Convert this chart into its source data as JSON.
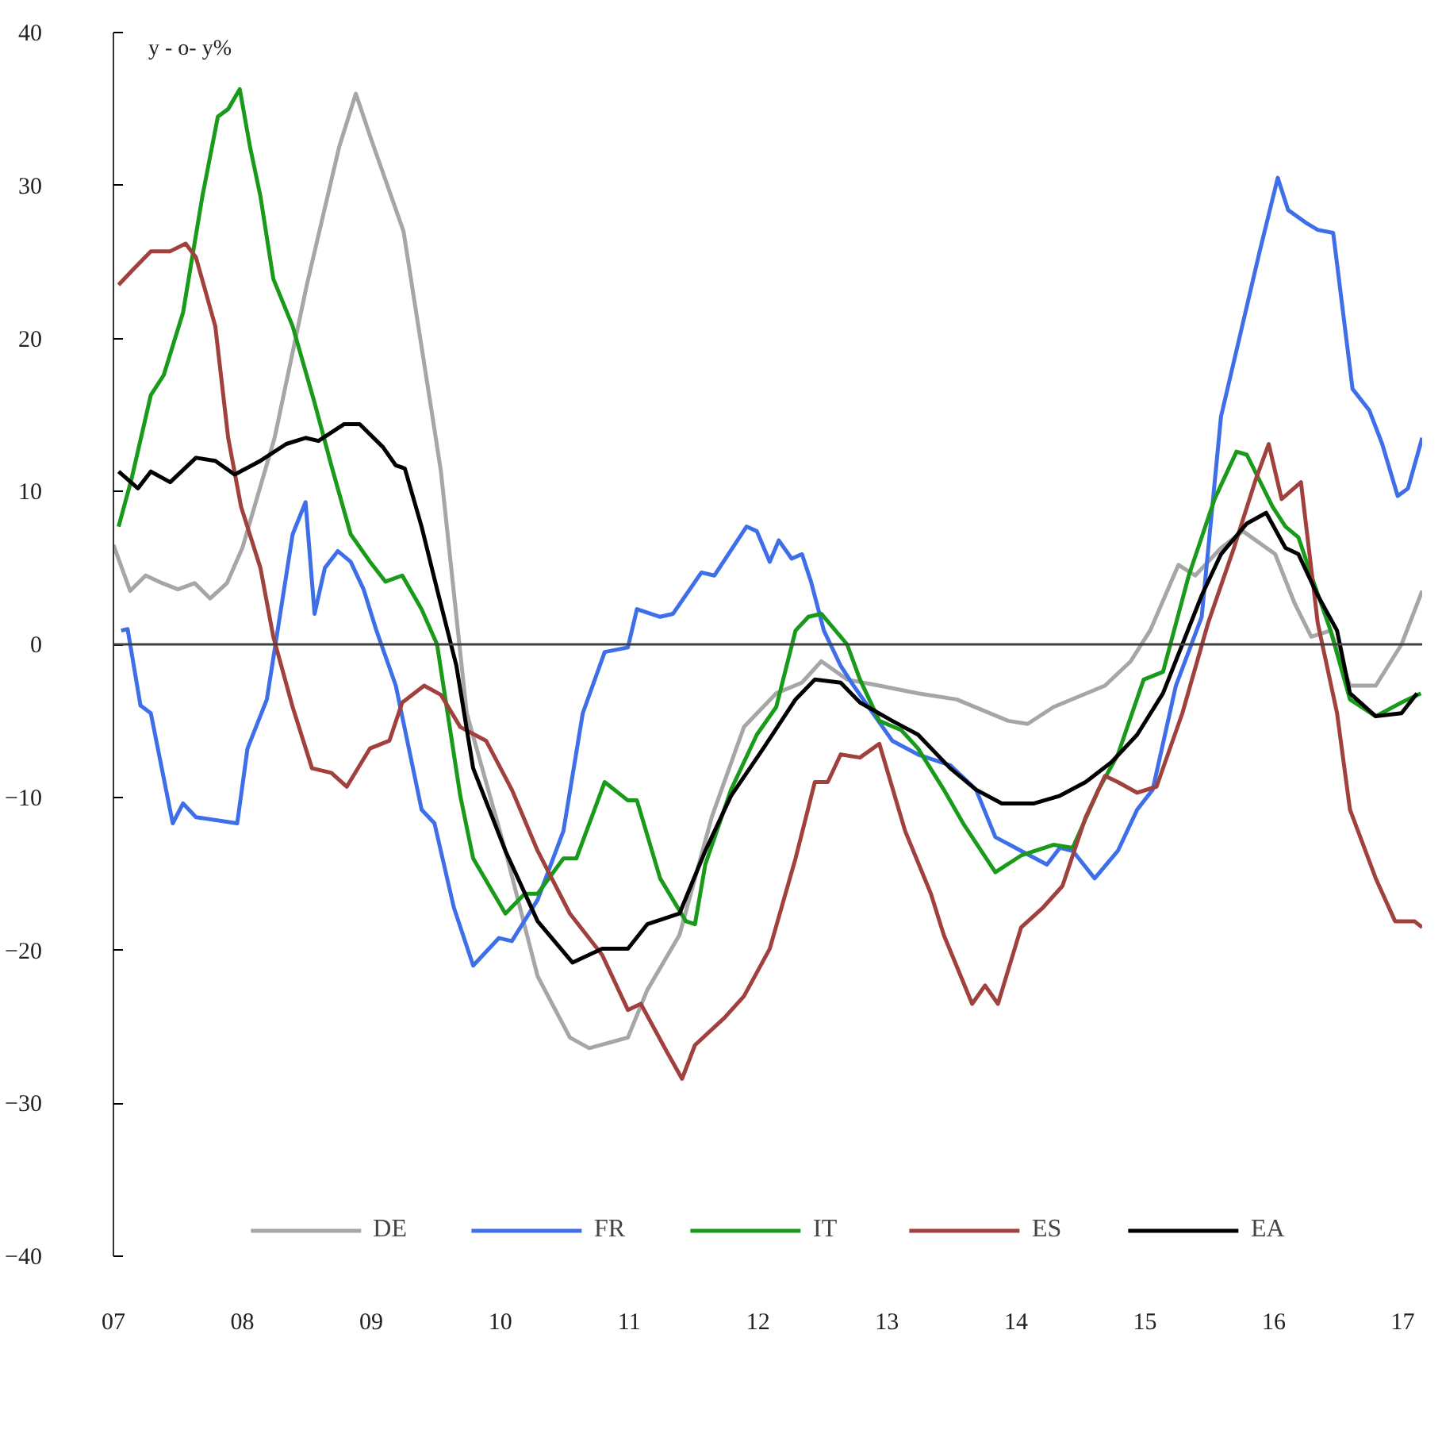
{
  "chart_data": {
    "type": "line",
    "ylabel": "y - o- y%",
    "xlim": [
      2007,
      2017.15
    ],
    "ylim": [
      -40,
      40
    ],
    "xticks": [
      {
        "value": 2007,
        "label": "07"
      },
      {
        "value": 2008,
        "label": "08"
      },
      {
        "value": 2009,
        "label": "09"
      },
      {
        "value": 2010,
        "label": "10"
      },
      {
        "value": 2011,
        "label": "11"
      },
      {
        "value": 2012,
        "label": "12"
      },
      {
        "value": 2013,
        "label": "13"
      },
      {
        "value": 2014,
        "label": "14"
      },
      {
        "value": 2015,
        "label": "15"
      },
      {
        "value": 2016,
        "label": "16"
      },
      {
        "value": 2017,
        "label": "17"
      }
    ],
    "yticks": [
      -40,
      -30,
      -20,
      -10,
      0,
      10,
      20,
      30,
      40
    ],
    "grid": false,
    "legend": "bottom",
    "marker": "none",
    "line_style": "solid",
    "ref_lines": [
      {
        "axis": "y",
        "value": 0,
        "label": null,
        "color": "#404040"
      }
    ],
    "series": [
      {
        "name": "DE",
        "color": "#a6a6a6",
        "x": [
          2007.0,
          2007.13,
          2007.25,
          2007.38,
          2007.5,
          2007.63,
          2007.75,
          2007.88,
          2008.0,
          2008.25,
          2008.5,
          2008.75,
          2008.88,
          2009.0,
          2009.25,
          2009.5,
          2009.54,
          2009.74,
          2010.04,
          2010.29,
          2010.54,
          2010.69,
          2010.99,
          2011.14,
          2011.39,
          2011.64,
          2011.89,
          2012.14,
          2012.34,
          2012.49,
          2012.69,
          2012.94,
          2013.24,
          2013.54,
          2013.94,
          2014.09,
          2014.29,
          2014.69,
          2014.89,
          2015.04,
          2015.26,
          2015.39,
          2015.59,
          2015.76,
          2016.01,
          2016.16,
          2016.29,
          2016.44,
          2016.59,
          2016.79,
          2016.99,
          2017.15
        ],
        "values": [
          6.5,
          3.5,
          4.5,
          4,
          3.6,
          4,
          3,
          4,
          6.3,
          13.5,
          23.5,
          32.5,
          36,
          33,
          27,
          13.5,
          11.3,
          -4.5,
          -13.5,
          -21.7,
          -25.7,
          -26.4,
          -25.7,
          -22.6,
          -19,
          -11.3,
          -5.4,
          -3.2,
          -2.5,
          -1.1,
          -2.3,
          -2.7,
          -3.2,
          -3.6,
          -5,
          -5.2,
          -4.1,
          -2.7,
          -1.1,
          0.9,
          5.2,
          4.5,
          6.3,
          7.4,
          5.9,
          2.7,
          0.5,
          0.9,
          -2.7,
          -2.7,
          0,
          3.5
        ]
      },
      {
        "name": "FR",
        "color": "#3f6fe8",
        "x": [
          2007.06,
          2007.11,
          2007.21,
          2007.29,
          2007.46,
          2007.54,
          2007.64,
          2007.96,
          2008.04,
          2008.19,
          2008.39,
          2008.49,
          2008.56,
          2008.64,
          2008.74,
          2008.84,
          2008.94,
          2009.04,
          2009.19,
          2009.39,
          2009.49,
          2009.64,
          2009.79,
          2009.99,
          2010.09,
          2010.29,
          2010.49,
          2010.64,
          2010.81,
          2010.99,
          2011.06,
          2011.24,
          2011.34,
          2011.56,
          2011.66,
          2011.91,
          2011.99,
          2012.09,
          2012.16,
          2012.26,
          2012.34,
          2012.41,
          2012.51,
          2012.64,
          2012.74,
          2013.04,
          2013.24,
          2013.49,
          2013.69,
          2013.84,
          2014.04,
          2014.24,
          2014.34,
          2014.44,
          2014.61,
          2014.79,
          2014.94,
          2015.06,
          2015.24,
          2015.44,
          2015.59,
          2015.74,
          2015.89,
          2016.03,
          2016.11,
          2016.26,
          2016.34,
          2016.46,
          2016.61,
          2016.74,
          2016.84,
          2016.96,
          2017.04,
          2017.15
        ],
        "values": [
          0.9,
          1,
          -4,
          -4.5,
          -11.7,
          -10.4,
          -11.3,
          -11.7,
          -6.8,
          -3.6,
          7.2,
          9.3,
          2,
          5,
          6.1,
          5.4,
          3.6,
          0.9,
          -2.7,
          -10.8,
          -11.7,
          -17.2,
          -21,
          -19.2,
          -19.4,
          -16.7,
          -12.2,
          -4.5,
          -0.5,
          -0.2,
          2.3,
          1.8,
          2,
          4.7,
          4.5,
          7.7,
          7.4,
          5.4,
          6.8,
          5.6,
          5.9,
          4.1,
          0.9,
          -1.4,
          -2.7,
          -6.3,
          -7.2,
          -7.9,
          -9.5,
          -12.6,
          -13.5,
          -14.4,
          -13.3,
          -13.5,
          -15.3,
          -13.5,
          -10.8,
          -9.5,
          -2.7,
          1.8,
          14.9,
          20.3,
          25.7,
          30.5,
          28.4,
          27.5,
          27.1,
          26.9,
          16.7,
          15.3,
          13.1,
          9.7,
          10.2,
          13.5
        ]
      },
      {
        "name": "IT",
        "color": "#1a9a1a",
        "x": [
          2007.04,
          2007.14,
          2007.29,
          2007.39,
          2007.54,
          2007.69,
          2007.81,
          2007.89,
          2007.98,
          2008.06,
          2008.14,
          2008.24,
          2008.39,
          2008.56,
          2008.69,
          2008.84,
          2008.99,
          2009.11,
          2009.24,
          2009.39,
          2009.51,
          2009.69,
          2009.79,
          2010.04,
          2010.19,
          2010.29,
          2010.49,
          2010.59,
          2010.81,
          2010.99,
          2011.06,
          2011.24,
          2011.44,
          2011.51,
          2011.59,
          2011.79,
          2011.99,
          2012.14,
          2012.29,
          2012.39,
          2012.49,
          2012.69,
          2012.79,
          2012.94,
          2013.11,
          2013.24,
          2013.44,
          2013.59,
          2013.84,
          2014.04,
          2014.29,
          2014.44,
          2014.64,
          2014.79,
          2014.99,
          2015.14,
          2015.34,
          2015.54,
          2015.71,
          2015.79,
          2015.99,
          2016.09,
          2016.19,
          2016.29,
          2016.44,
          2016.59,
          2016.79,
          2016.99,
          2017.14
        ],
        "values": [
          7.7,
          10.8,
          16.3,
          17.6,
          21.7,
          29.3,
          34.5,
          35,
          36.3,
          32.5,
          29.3,
          23.9,
          20.8,
          15.8,
          11.7,
          7.2,
          5.4,
          4.1,
          4.5,
          2.3,
          0,
          -9.9,
          -14,
          -17.6,
          -16.3,
          -16.3,
          -14,
          -14,
          -9,
          -10.2,
          -10.2,
          -15.3,
          -18.1,
          -18.3,
          -14.4,
          -9.5,
          -5.9,
          -4.1,
          0.9,
          1.8,
          2,
          0,
          -2.3,
          -5,
          -5.6,
          -6.8,
          -9.5,
          -11.7,
          -14.9,
          -13.8,
          -13.1,
          -13.3,
          -9.5,
          -7.2,
          -2.3,
          -1.8,
          4.5,
          9.5,
          12.6,
          12.4,
          9,
          7.7,
          7,
          4.5,
          0.9,
          -3.6,
          -4.7,
          -3.8,
          -3.2
        ]
      },
      {
        "name": "ES",
        "color": "#a0413d",
        "x": [
          2007.04,
          2007.14,
          2007.29,
          2007.44,
          2007.56,
          2007.64,
          2007.79,
          2007.89,
          2007.99,
          2008.14,
          2008.24,
          2008.39,
          2008.54,
          2008.69,
          2008.81,
          2008.99,
          2009.14,
          2009.24,
          2009.41,
          2009.54,
          2009.69,
          2009.89,
          2010.09,
          2010.29,
          2010.54,
          2010.79,
          2010.99,
          2011.09,
          2011.29,
          2011.41,
          2011.51,
          2011.74,
          2011.89,
          2012.09,
          2012.29,
          2012.44,
          2012.54,
          2012.64,
          2012.79,
          2012.94,
          2013.14,
          2013.34,
          2013.44,
          2013.66,
          2013.76,
          2013.86,
          2014.04,
          2014.21,
          2014.36,
          2014.54,
          2014.69,
          2014.79,
          2014.94,
          2015.09,
          2015.29,
          2015.49,
          2015.69,
          2015.86,
          2015.96,
          2016.06,
          2016.21,
          2016.34,
          2016.49,
          2016.59,
          2016.79,
          2016.94,
          2017.09,
          2017.15
        ],
        "values": [
          23.5,
          24.4,
          25.7,
          25.7,
          26.2,
          25.3,
          20.8,
          13.5,
          9,
          5,
          0.5,
          -4.1,
          -8.1,
          -8.4,
          -9.3,
          -6.8,
          -6.3,
          -3.8,
          -2.7,
          -3.3,
          -5.4,
          -6.3,
          -9.5,
          -13.5,
          -17.6,
          -20.3,
          -23.9,
          -23.5,
          -26.6,
          -28.4,
          -26.2,
          -24.4,
          -23,
          -19.9,
          -14,
          -9,
          -9,
          -7.2,
          -7.4,
          -6.5,
          -12.2,
          -16.3,
          -19,
          -23.5,
          -22.3,
          -23.5,
          -18.5,
          -17.2,
          -15.8,
          -11.3,
          -8.6,
          -9,
          -9.7,
          -9.3,
          -4.5,
          1.4,
          6.3,
          10.8,
          13.1,
          9.5,
          10.6,
          1.4,
          -4.5,
          -10.8,
          -15.3,
          -18.1,
          -18.1,
          -18.5
        ]
      },
      {
        "name": "EA",
        "color": "#000000",
        "x": [
          2007.04,
          2007.19,
          2007.29,
          2007.44,
          2007.64,
          2007.79,
          2007.94,
          2008.14,
          2008.34,
          2008.49,
          2008.59,
          2008.79,
          2008.91,
          2009.09,
          2009.19,
          2009.26,
          2009.39,
          2009.51,
          2009.66,
          2009.79,
          2010.04,
          2010.29,
          2010.56,
          2010.79,
          2010.99,
          2011.14,
          2011.39,
          2011.59,
          2011.79,
          2012.04,
          2012.29,
          2012.44,
          2012.64,
          2012.79,
          2013.04,
          2013.24,
          2013.49,
          2013.69,
          2013.89,
          2014.14,
          2014.34,
          2014.54,
          2014.74,
          2014.94,
          2015.14,
          2015.29,
          2015.44,
          2015.59,
          2015.79,
          2015.94,
          2016.09,
          2016.19,
          2016.34,
          2016.49,
          2016.59,
          2016.79,
          2016.99,
          2017.11
        ],
        "values": [
          11.3,
          10.2,
          11.3,
          10.6,
          12.2,
          12,
          11.1,
          12,
          13.1,
          13.5,
          13.3,
          14.4,
          14.4,
          12.9,
          11.7,
          11.5,
          7.7,
          3.6,
          -1.4,
          -8.1,
          -13.5,
          -18.1,
          -20.8,
          -19.9,
          -19.9,
          -18.3,
          -17.6,
          -13.5,
          -9.9,
          -6.8,
          -3.6,
          -2.3,
          -2.5,
          -3.8,
          -5,
          -5.9,
          -8.1,
          -9.5,
          -10.4,
          -10.4,
          -9.9,
          -9,
          -7.7,
          -5.9,
          -3.2,
          0,
          3.2,
          5.9,
          7.9,
          8.6,
          6.3,
          5.9,
          3.2,
          0.9,
          -3.2,
          -4.7,
          -4.5,
          -3.2
        ]
      }
    ]
  }
}
